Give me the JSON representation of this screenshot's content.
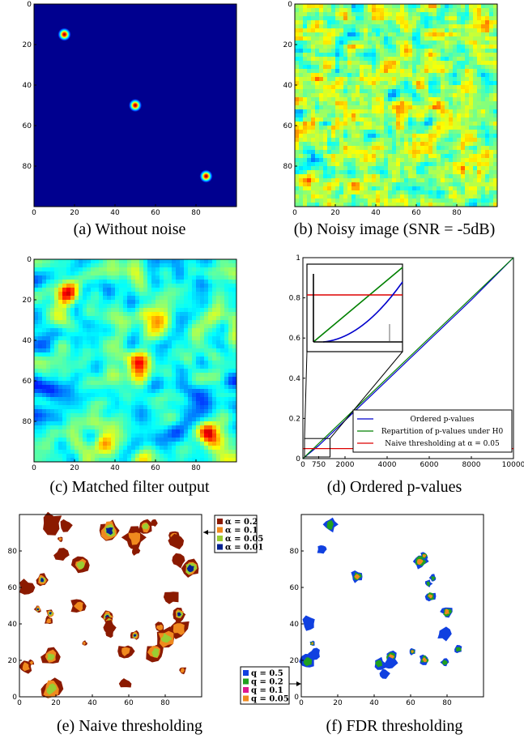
{
  "figure": {
    "panels": [
      {
        "id": "a",
        "caption": "(a) Without noise",
        "type": "heatmap",
        "x_ticks": [
          "0",
          "20",
          "40",
          "60",
          "80"
        ],
        "y_ticks": [
          "0",
          "20",
          "40",
          "60",
          "80"
        ],
        "sources": [
          {
            "x": 15,
            "y": 15
          },
          {
            "x": 50,
            "y": 50
          },
          {
            "x": 85,
            "y": 85
          }
        ]
      },
      {
        "id": "b",
        "caption": "(b) Noisy image (SNR = -5dB)",
        "type": "heatmap",
        "x_ticks": [
          "0",
          "20",
          "40",
          "60",
          "80"
        ],
        "y_ticks": [
          "0",
          "20",
          "40",
          "60",
          "80"
        ]
      },
      {
        "id": "c",
        "caption": "(c) Matched filter output",
        "type": "heatmap",
        "x_ticks": [
          "0",
          "20",
          "40",
          "60",
          "80"
        ],
        "y_ticks": [
          "0",
          "20",
          "40",
          "60",
          "80"
        ]
      },
      {
        "id": "d",
        "caption": "(d) Ordered p-values",
        "type": "line",
        "x_ticks": [
          "0",
          "750",
          "2000",
          "4000",
          "6000",
          "8000",
          "10000"
        ],
        "y_ticks": [
          "0",
          "0.2",
          "0.4",
          "0.6",
          "0.8",
          "1"
        ],
        "legend": [
          {
            "label": "Ordered p-values",
            "color": "#0000cc"
          },
          {
            "label": "Repartition of p-values under H0",
            "color": "#008000"
          },
          {
            "label": "Naive thresholding at α = 0.05",
            "color": "#dd0000"
          }
        ]
      },
      {
        "id": "e",
        "caption": "(e) Naive thresholding",
        "type": "heatmap",
        "x_ticks": [
          "0",
          "20",
          "40",
          "60",
          "80"
        ],
        "y_ticks": [
          "0",
          "20",
          "40",
          "60",
          "80"
        ],
        "legend": [
          {
            "label": "α = 0.2",
            "color": "#8b1a00"
          },
          {
            "label": "α = 0.1",
            "color": "#f08a1e"
          },
          {
            "label": "α = 0.05",
            "color": "#9acd32"
          },
          {
            "label": "α = 0.01",
            "color": "#002090"
          }
        ]
      },
      {
        "id": "f",
        "caption": "(f) FDR thresholding",
        "type": "heatmap",
        "x_ticks": [
          "0",
          "20",
          "40",
          "60",
          "80"
        ],
        "y_ticks": [
          "0",
          "20",
          "40",
          "60",
          "80"
        ],
        "legend": [
          {
            "label": "q = 0.5",
            "color": "#1040e0"
          },
          {
            "label": "q = 0.2",
            "color": "#20a020"
          },
          {
            "label": "q = 0.1",
            "color": "#e01890"
          },
          {
            "label": "q = 0.05",
            "color": "#f08a1e"
          }
        ]
      }
    ]
  },
  "chart_data": [
    {
      "type": "heatmap",
      "title": "(a) Without noise",
      "xlim": [
        0,
        100
      ],
      "ylim": [
        0,
        100
      ],
      "peaks": [
        [
          15,
          15
        ],
        [
          50,
          50
        ],
        [
          85,
          85
        ]
      ]
    },
    {
      "type": "heatmap",
      "title": "(b) Noisy image (SNR = -5dB)",
      "xlim": [
        0,
        100
      ],
      "ylim": [
        0,
        100
      ]
    },
    {
      "type": "heatmap",
      "title": "(c) Matched filter output",
      "xlim": [
        0,
        100
      ],
      "ylim": [
        0,
        100
      ],
      "peaks": [
        [
          15,
          15
        ],
        [
          50,
          50
        ],
        [
          85,
          85
        ]
      ]
    },
    {
      "type": "line",
      "title": "(d) Ordered p-values",
      "xlim": [
        0,
        10000
      ],
      "ylim": [
        0,
        1
      ],
      "series": [
        {
          "name": "Ordered p-values",
          "x": [
            0,
            750,
            2000,
            4000,
            6000,
            8000,
            10000
          ],
          "values": [
            0,
            0.065,
            0.19,
            0.39,
            0.59,
            0.79,
            1.0
          ]
        },
        {
          "name": "Repartition of p-values under H0",
          "x": [
            0,
            10000
          ],
          "values": [
            0,
            1
          ]
        },
        {
          "name": "Naive thresholding at α = 0.05",
          "x": [
            0,
            10000
          ],
          "values": [
            0.05,
            0.05
          ]
        }
      ]
    },
    {
      "type": "heatmap",
      "title": "(e) Naive thresholding",
      "xlim": [
        0,
        100
      ],
      "ylim": [
        0,
        100
      ]
    },
    {
      "type": "heatmap",
      "title": "(f) FDR thresholding",
      "xlim": [
        0,
        100
      ],
      "ylim": [
        0,
        100
      ]
    }
  ]
}
